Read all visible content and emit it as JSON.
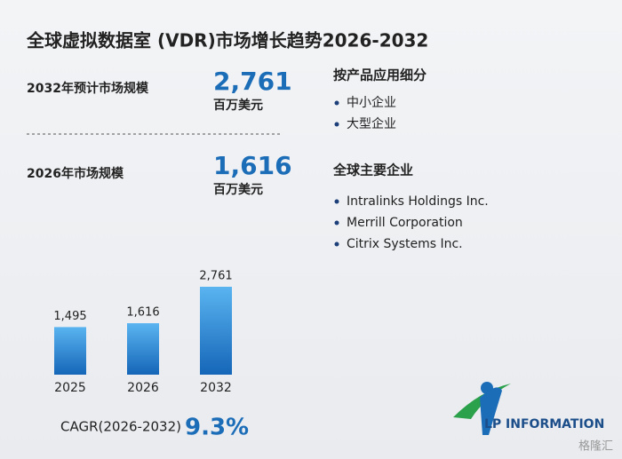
{
  "title": "全球虚拟数据室 (VDR)市场增长趋势2026-2032",
  "stats": [
    {
      "label": "2032年预计市场规模",
      "value": "2,761",
      "unit": "百万美元"
    },
    {
      "label": "2026年市场规模",
      "value": "1,616",
      "unit": "百万美元"
    }
  ],
  "segments": {
    "title": "按产品应用细分",
    "items": [
      "中小企业",
      "大型企业"
    ]
  },
  "companies": {
    "title": "全球主要企业",
    "items": [
      "Intralinks Holdings Inc.",
      "Merrill Corporation",
      "Citrix Systems Inc."
    ]
  },
  "cagr": {
    "label": "CAGR(2026-2032)",
    "value": "9.3%"
  },
  "logo": "LP INFORMATION",
  "watermark": "格隆汇",
  "chart_data": {
    "type": "bar",
    "categories": [
      "2025",
      "2026",
      "2032"
    ],
    "values": [
      1495,
      1616,
      2761
    ],
    "value_labels": [
      "1,495",
      "1,616",
      "2,761"
    ],
    "color": "#1f78c8"
  }
}
